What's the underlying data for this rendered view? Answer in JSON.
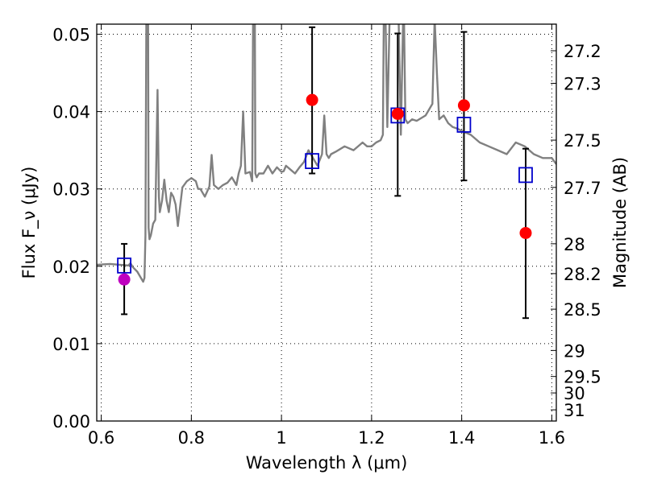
{
  "chart_data": {
    "type": "scatter",
    "xlabel": "Wavelength λ (μm)",
    "ylabel": "Flux F_ν (μJy)",
    "ylabel_right": "Magnitude (AB)",
    "xlim": [
      0.59,
      1.61
    ],
    "ylim": [
      0.0,
      0.0513
    ],
    "x_ticks": [
      0.6,
      0.8,
      1.0,
      1.2,
      1.4,
      1.6
    ],
    "x_tick_labels": [
      "0.6",
      "0.8",
      "1",
      "1.2",
      "1.4",
      "1.6"
    ],
    "y_ticks": [
      0.0,
      0.01,
      0.02,
      0.03,
      0.04,
      0.05
    ],
    "y_tick_labels": [
      "0.00",
      "0.01",
      "0.02",
      "0.03",
      "0.04",
      "0.05"
    ],
    "mag_ticks": [
      27.2,
      27.3,
      27.5,
      27.7,
      28,
      28.2,
      28.5,
      29,
      29.5,
      30,
      31
    ],
    "mag_tick_labels": [
      "27.2",
      "27.3",
      "27.5",
      "27.7",
      "28",
      "28.2",
      "28.5",
      "29",
      "29.5",
      "30",
      "31"
    ],
    "grid": true,
    "colors": {
      "spectrum": "#808080",
      "observed": "#ff0000",
      "observed_first": "#bf00bf",
      "model": "#0000cc",
      "errorbar": "#000000"
    },
    "spectrum": {
      "x": [
        0.59,
        0.62,
        0.66,
        0.665,
        0.67,
        0.68,
        0.69,
        0.693,
        0.696,
        0.698,
        0.7,
        0.701,
        0.702,
        0.703,
        0.704,
        0.705,
        0.707,
        0.71,
        0.715,
        0.72,
        0.725,
        0.728,
        0.73,
        0.735,
        0.74,
        0.745,
        0.75,
        0.755,
        0.76,
        0.765,
        0.77,
        0.78,
        0.79,
        0.8,
        0.81,
        0.815,
        0.82,
        0.83,
        0.84,
        0.845,
        0.85,
        0.86,
        0.87,
        0.88,
        0.89,
        0.9,
        0.905,
        0.91,
        0.915,
        0.92,
        0.93,
        0.935,
        0.937,
        0.938,
        0.939,
        0.94,
        0.941,
        0.942,
        0.945,
        0.95,
        0.96,
        0.97,
        0.98,
        0.99,
        1.0,
        1.005,
        1.01,
        1.02,
        1.03,
        1.04,
        1.05,
        1.06,
        1.07,
        1.08,
        1.09,
        1.095,
        1.1,
        1.105,
        1.11,
        1.12,
        1.14,
        1.16,
        1.18,
        1.19,
        1.2,
        1.21,
        1.22,
        1.225,
        1.227,
        1.228,
        1.229,
        1.23,
        1.231,
        1.235,
        1.24,
        1.25,
        1.26,
        1.265,
        1.27,
        1.272,
        1.275,
        1.28,
        1.29,
        1.3,
        1.32,
        1.335,
        1.34,
        1.345,
        1.35,
        1.36,
        1.37,
        1.38,
        1.39,
        1.4,
        1.42,
        1.44,
        1.46,
        1.48,
        1.5,
        1.52,
        1.54,
        1.56,
        1.58,
        1.6,
        1.61
      ],
      "y": [
        0.0202,
        0.0203,
        0.0201,
        0.0204,
        0.0199,
        0.0193,
        0.0183,
        0.018,
        0.0185,
        0.024,
        0.052,
        0.052,
        0.052,
        0.052,
        0.052,
        0.025,
        0.0235,
        0.024,
        0.0255,
        0.026,
        0.0428,
        0.029,
        0.027,
        0.0285,
        0.0312,
        0.0285,
        0.027,
        0.0295,
        0.029,
        0.028,
        0.0252,
        0.0302,
        0.031,
        0.0314,
        0.031,
        0.03,
        0.03,
        0.029,
        0.0303,
        0.0344,
        0.0305,
        0.03,
        0.0305,
        0.0308,
        0.0315,
        0.0305,
        0.032,
        0.033,
        0.04,
        0.032,
        0.0322,
        0.031,
        0.052,
        0.052,
        0.052,
        0.052,
        0.052,
        0.032,
        0.0315,
        0.032,
        0.032,
        0.033,
        0.032,
        0.0328,
        0.0322,
        0.0323,
        0.033,
        0.0325,
        0.032,
        0.0328,
        0.0335,
        0.035,
        0.034,
        0.033,
        0.0345,
        0.0395,
        0.0345,
        0.034,
        0.0345,
        0.0348,
        0.0355,
        0.035,
        0.036,
        0.0355,
        0.0355,
        0.036,
        0.0363,
        0.037,
        0.052,
        0.052,
        0.052,
        0.052,
        0.052,
        0.038,
        0.052,
        0.052,
        0.052,
        0.037,
        0.052,
        0.052,
        0.039,
        0.0385,
        0.039,
        0.0388,
        0.0395,
        0.041,
        0.052,
        0.045,
        0.039,
        0.0395,
        0.0385,
        0.038,
        0.0378,
        0.0375,
        0.037,
        0.036,
        0.0355,
        0.035,
        0.0345,
        0.036,
        0.0355,
        0.0345,
        0.034,
        0.034,
        0.0332
      ]
    },
    "series": [
      {
        "x": [
          0.651,
          1.068,
          1.258,
          1.405,
          1.542
        ],
        "y": [
          0.0183,
          0.0415,
          0.0397,
          0.0408,
          0.0243
        ],
        "err_low": [
          0.0138,
          0.032,
          0.0291,
          0.0311,
          0.0133
        ],
        "err_high": [
          0.0229,
          0.0509,
          0.0501,
          0.0503,
          0.0352
        ]
      },
      {
        "x": [
          0.651,
          1.068,
          1.258,
          1.405,
          1.542
        ],
        "y": [
          0.0201,
          0.0336,
          0.0395,
          0.0383,
          0.0318
        ]
      }
    ]
  }
}
